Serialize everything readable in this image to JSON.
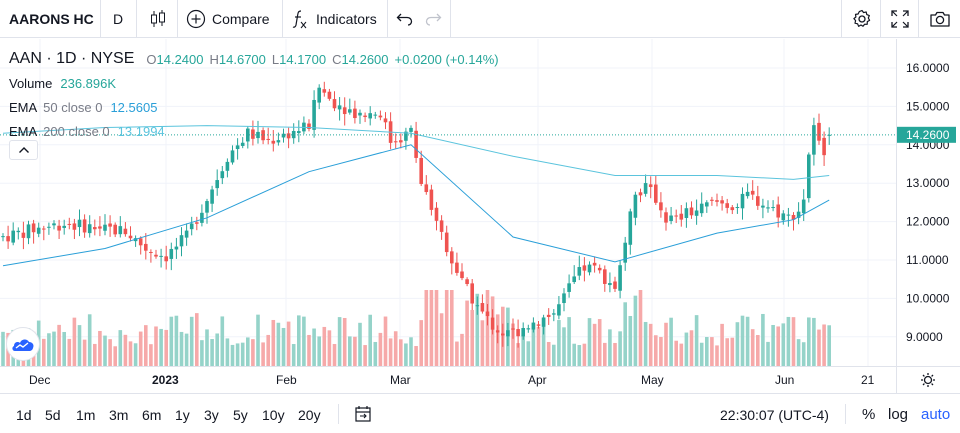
{
  "toolbar": {
    "symbol": "AARONS HC",
    "interval": "D",
    "compare_label": "Compare",
    "indicators_label": "Indicators",
    "icons": [
      "candles-icon",
      "plus-circle-icon",
      "fx-icon",
      "undo-icon",
      "redo-icon",
      "gear-icon",
      "fullscreen-icon",
      "camera-icon"
    ]
  },
  "legend": {
    "symbol": "AAN",
    "interval": "1D",
    "exchange": "NYSE",
    "o_label": "O",
    "o": "14.2400",
    "h_label": "H",
    "h": "14.6700",
    "l_label": "L",
    "l": "14.1700",
    "c_label": "C",
    "c": "14.2600",
    "change": "+0.0200 (+0.14%)",
    "volume": {
      "title": "Volume",
      "value": "236.896K"
    },
    "ema50": {
      "title": "EMA",
      "params": "50 close 0",
      "value": "12.5605"
    },
    "ema200": {
      "title": "EMA",
      "params": "200 close 0",
      "value": "13.1994"
    }
  },
  "colors": {
    "up": "#26a69a",
    "down": "#ef5350",
    "vol_up": "#95d3c9",
    "vol_down": "#f6a9a9",
    "ema50": "#2a9fd8",
    "ema200": "#5bc4dd"
  },
  "chart_data": {
    "type": "candlestick",
    "ylim": [
      8.25,
      16.5
    ],
    "price_ticks": [
      "16.0000",
      "15.0000",
      "14.0000",
      "13.0000",
      "12.0000",
      "11.0000",
      "10.0000",
      "9.0000"
    ],
    "last_price_label": "14.2600",
    "time_labels": [
      "Dec",
      "2023",
      "Feb",
      "Mar",
      "Apr",
      "May",
      "Jun",
      "21"
    ],
    "ohlc_control_points": [
      [
        0,
        11.6
      ],
      [
        6,
        11.8
      ],
      [
        12,
        11.95
      ],
      [
        18,
        11.85
      ],
      [
        24,
        11.75
      ],
      [
        28,
        11.3
      ],
      [
        32,
        11.1
      ],
      [
        36,
        11.6
      ],
      [
        40,
        12.6
      ],
      [
        44,
        13.7
      ],
      [
        48,
        14.3
      ],
      [
        52,
        14.1
      ],
      [
        56,
        14.3
      ],
      [
        60,
        14.5
      ],
      [
        62,
        15.5
      ],
      [
        64,
        15.2
      ],
      [
        68,
        14.9
      ],
      [
        70,
        14.8
      ],
      [
        74,
        14.85
      ],
      [
        76,
        14.1
      ],
      [
        78,
        14.2
      ],
      [
        80,
        14.35
      ],
      [
        82,
        13.0
      ],
      [
        84,
        12.4
      ],
      [
        86,
        11.7
      ],
      [
        88,
        11.0
      ],
      [
        90,
        10.4
      ],
      [
        92,
        10.0
      ],
      [
        94,
        9.6
      ],
      [
        96,
        9.3
      ],
      [
        98,
        9.1
      ],
      [
        100,
        9.1
      ],
      [
        102,
        9.25
      ],
      [
        106,
        9.5
      ],
      [
        108,
        9.6
      ],
      [
        110,
        10.0
      ],
      [
        112,
        10.5
      ],
      [
        114,
        10.8
      ],
      [
        116,
        10.75
      ],
      [
        118,
        10.55
      ],
      [
        120,
        10.3
      ],
      [
        124,
        12.7
      ],
      [
        126,
        12.9
      ],
      [
        128,
        12.6
      ],
      [
        130,
        12.1
      ],
      [
        132,
        12.05
      ],
      [
        134,
        12.2
      ],
      [
        138,
        12.4
      ],
      [
        140,
        12.5
      ],
      [
        144,
        12.4
      ],
      [
        146,
        12.7
      ],
      [
        148,
        12.55
      ],
      [
        150,
        12.4
      ],
      [
        152,
        12.25
      ],
      [
        154,
        12.1
      ],
      [
        156,
        12.3
      ],
      [
        157,
        12.6
      ],
      [
        158,
        13.8
      ],
      [
        159,
        14.4
      ],
      [
        160,
        14.0
      ],
      [
        161,
        13.9
      ],
      [
        162,
        14.26
      ]
    ],
    "gaps": [
      [
        120,
        124
      ]
    ],
    "ema50_points": [
      [
        0,
        10.85
      ],
      [
        20,
        11.3
      ],
      [
        40,
        12.1
      ],
      [
        60,
        13.3
      ],
      [
        80,
        14.0
      ],
      [
        100,
        11.6
      ],
      [
        120,
        10.95
      ],
      [
        140,
        11.7
      ],
      [
        155,
        12.05
      ],
      [
        162,
        12.56
      ]
    ],
    "ema200_points": [
      [
        0,
        14.3
      ],
      [
        20,
        14.45
      ],
      [
        40,
        14.5
      ],
      [
        60,
        14.45
      ],
      [
        80,
        14.3
      ],
      [
        100,
        13.7
      ],
      [
        120,
        13.2
      ],
      [
        140,
        13.2
      ],
      [
        155,
        13.1
      ],
      [
        162,
        13.2
      ]
    ]
  },
  "time_axis": {
    "labels": [
      {
        "text": "Dec",
        "bold": false
      },
      {
        "text": "2023",
        "bold": true
      },
      {
        "text": "Feb",
        "bold": false
      },
      {
        "text": "Mar",
        "bold": false
      },
      {
        "text": "Apr",
        "bold": false
      },
      {
        "text": "May",
        "bold": false
      },
      {
        "text": "Jun",
        "bold": false
      },
      {
        "text": "21",
        "bold": false
      }
    ]
  },
  "bottom": {
    "ranges": [
      "1d",
      "5d",
      "1m",
      "3m",
      "6m",
      "1y",
      "3y",
      "5y",
      "10y",
      "20y"
    ],
    "clock": "22:30:07 (UTC-4)",
    "percent": "%",
    "log": "log",
    "auto": "auto"
  }
}
